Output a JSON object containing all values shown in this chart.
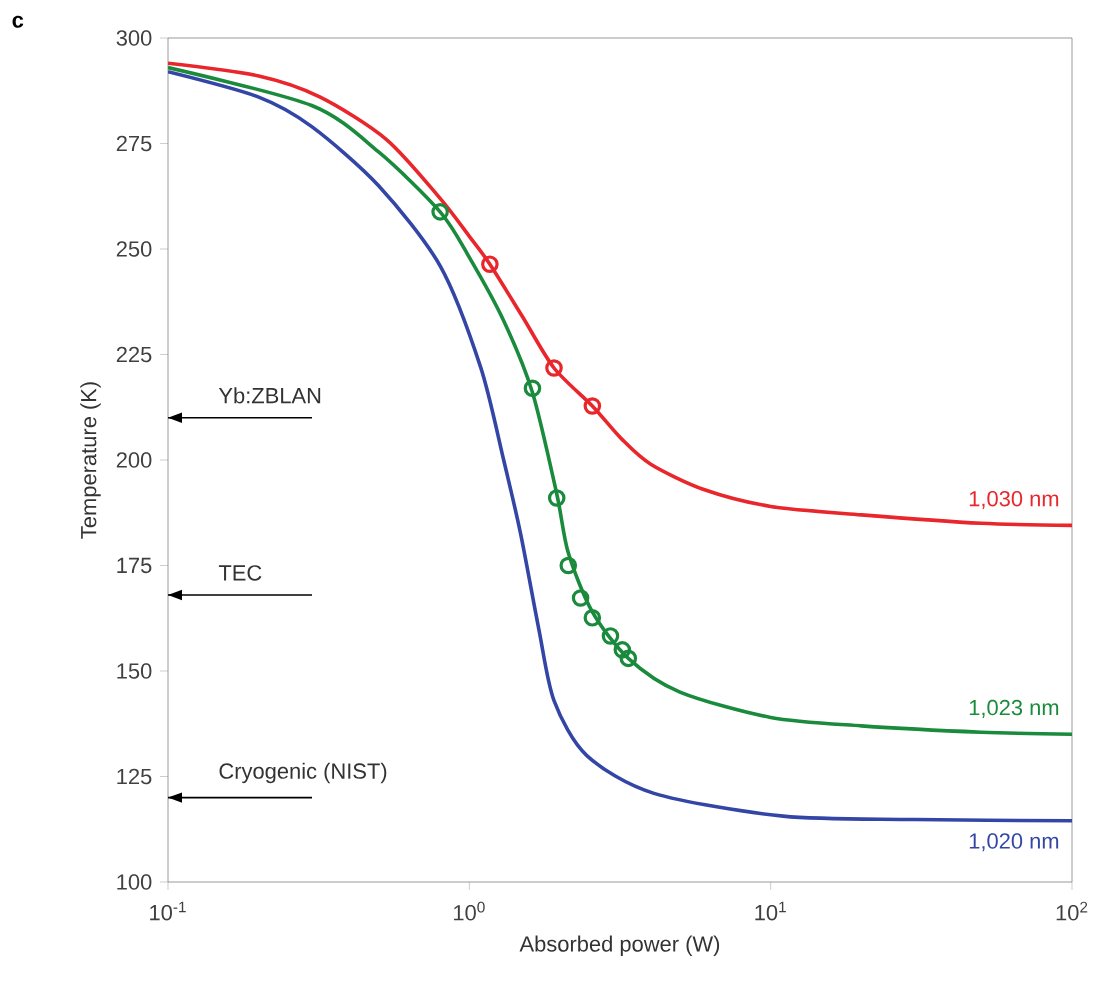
{
  "chart_data": {
    "type": "line",
    "title": "c",
    "xlabel": "Absorbed power (W)",
    "ylabel": "Temperature (K)",
    "log": "x",
    "marker": "none",
    "xlim": [
      0.1,
      100
    ],
    "ylim": [
      100,
      300
    ],
    "xticks": [
      {
        "value": 0.1,
        "label": "10$^{-1}$"
      },
      {
        "value": 1,
        "label": "10$^{0}$"
      },
      {
        "value": 10,
        "label": "10$^{1}$"
      },
      {
        "value": 100,
        "label": "10$^{2}$"
      }
    ],
    "yticks": [
      100,
      125,
      150,
      175,
      200,
      225,
      250,
      275,
      300
    ],
    "series": [
      {
        "name": "1,030 nm",
        "color": "#e8262b",
        "x": [
          0.1,
          0.2,
          0.32,
          0.53,
          0.8,
          1.0,
          1.17,
          1.5,
          1.91,
          2.56,
          3.2,
          4,
          6,
          10,
          20,
          50,
          100
        ],
        "values": [
          294,
          291,
          286,
          276,
          262,
          253,
          246.4,
          234,
          221.8,
          212.8,
          205,
          199,
          193,
          189,
          187,
          185,
          184.5
        ]
      },
      {
        "name": "1,023 nm",
        "color": "#1a8a3c",
        "x": [
          0.1,
          0.3,
          0.5,
          0.8,
          1.0,
          1.3,
          1.62,
          1.95,
          2.13,
          2.56,
          3.37,
          5,
          10,
          20,
          50,
          100
        ],
        "values": [
          293,
          284,
          273,
          258.8,
          248,
          233,
          216,
          192,
          178,
          164,
          153,
          145,
          139,
          137,
          135.5,
          135
        ]
      },
      {
        "name": "1,020 nm",
        "color": "#3346a6",
        "x": [
          0.1,
          0.2,
          0.3,
          0.5,
          0.8,
          1.09,
          1.3,
          1.48,
          1.7,
          1.91,
          2.45,
          4.1,
          11,
          30,
          100
        ],
        "values": [
          292,
          286,
          279,
          265,
          246,
          222,
          200,
          182.5,
          160,
          143,
          130,
          121,
          115.6,
          114.8,
          114.5
        ]
      },
      {
        "type": "scatter",
        "marker": "circle",
        "color": "#e8262b",
        "x": [
          1.17,
          1.91,
          2.56
        ],
        "values": [
          246.4,
          221.8,
          212.8
        ]
      },
      {
        "type": "scatter",
        "marker": "circle",
        "color": "#1a8a3c",
        "x": [
          0.8,
          1.62,
          1.95,
          2.13,
          2.34,
          2.56,
          2.94,
          3.22,
          3.37
        ],
        "values": [
          258.8,
          217,
          191,
          175,
          167.3,
          162.6,
          158.3,
          155,
          153
        ]
      }
    ],
    "ref_lines": [
      {
        "axis": "y",
        "value": 210,
        "label": "Yb:ZBLAN"
      },
      {
        "axis": "y",
        "value": 168,
        "label": "TEC"
      },
      {
        "axis": "y",
        "value": 120,
        "label": "Cryogenic (NIST)"
      }
    ]
  }
}
